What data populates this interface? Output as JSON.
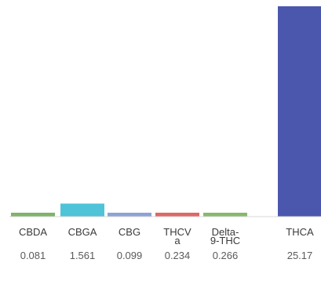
{
  "chart_data": {
    "type": "bar",
    "categories": [
      "CBDA",
      "CBGA",
      "CBG",
      "THCVa",
      "Delta-9-THC",
      "THCA"
    ],
    "category_label_lines": [
      [
        "CBDA"
      ],
      [
        "CBGA"
      ],
      [
        "CBG"
      ],
      [
        "THCV",
        "a"
      ],
      [
        "Delta-",
        "9-THC"
      ],
      [
        "THCA"
      ]
    ],
    "values": [
      0.081,
      1.561,
      0.099,
      0.234,
      0.266,
      25.17
    ],
    "value_labels": [
      "0.081",
      "1.561",
      "0.099",
      "0.234",
      "0.266",
      "25.17"
    ],
    "bar_colors": [
      "#7fb36a",
      "#4fc3d8",
      "#8da2d8",
      "#e06666",
      "#88b86a",
      "#4b57ad"
    ],
    "title": "",
    "xlabel": "",
    "ylabel": "",
    "ylim": [
      0,
      25.17
    ],
    "grid": false,
    "legend": "none"
  }
}
